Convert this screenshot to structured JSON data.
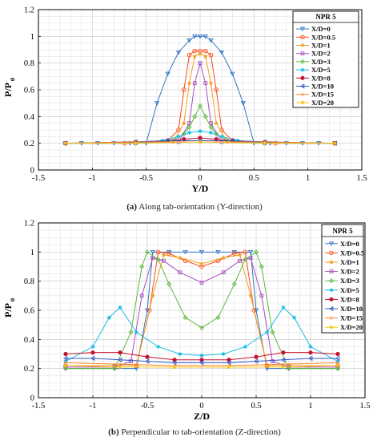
{
  "colors": {
    "X/D=0": "#2f75c8",
    "X/D=0.5": "#ff4a1a",
    "X/D=1": "#f0a020",
    "X/D=2": "#a64fc0",
    "X/D=3": "#5cb83a",
    "X/D=5": "#19bce8",
    "X/D=8": "#c8102e",
    "X/D=10": "#3058c8",
    "X/D=15": "#ff7f24",
    "X/D=20": "#f5c518"
  },
  "markers": {
    "X/D=0": "tri-down",
    "X/D=0.5": "circle",
    "X/D=1": "star",
    "X/D=2": "square",
    "X/D=3": "diamond",
    "X/D=5": "hexagram",
    "X/D=8": "dot",
    "X/D=10": "tri-left",
    "X/D=15": "plus",
    "X/D=20": "asterisk"
  },
  "chart_data": [
    {
      "type": "line",
      "caption_label": "(a)",
      "caption_text": "Along tab-orientation (Y-direction)",
      "xlabel": "Y/D",
      "ylabel": "P/P",
      "ylabel_sub": "o",
      "xlim": [
        -1.5,
        1.5
      ],
      "ylim": [
        0,
        1.2
      ],
      "xticks": [
        "-1.5",
        "-1",
        "-0.5",
        "0",
        "0.5",
        "1",
        "1.5"
      ],
      "yticks": [
        "0",
        "0.2",
        "0.4",
        "0.6",
        "0.8",
        "1",
        "1.2"
      ],
      "grid": true,
      "legend_title": "NPR 5",
      "legend_position": "top-right",
      "series": [
        {
          "name": "X/D=0",
          "x": [
            -1.25,
            -1.1,
            -0.95,
            -0.8,
            -0.65,
            -0.5,
            -0.4,
            -0.3,
            -0.2,
            -0.1,
            -0.05,
            0,
            0.05,
            0.1,
            0.2,
            0.3,
            0.4,
            0.5,
            0.65,
            0.8,
            0.95,
            1.1,
            1.25
          ],
          "y": [
            0.2,
            0.2,
            0.2,
            0.2,
            0.2,
            0.2,
            0.5,
            0.72,
            0.88,
            0.97,
            1.0,
            1.0,
            1.0,
            0.97,
            0.88,
            0.72,
            0.5,
            0.2,
            0.2,
            0.2,
            0.2,
            0.2,
            0.2
          ]
        },
        {
          "name": "X/D=0.5",
          "x": [
            -1.25,
            -0.7,
            -0.3,
            -0.2,
            -0.15,
            -0.1,
            -0.05,
            0,
            0.05,
            0.1,
            0.15,
            0.2,
            0.3,
            0.7,
            1.25
          ],
          "y": [
            0.2,
            0.2,
            0.22,
            0.3,
            0.6,
            0.86,
            0.89,
            0.89,
            0.89,
            0.86,
            0.6,
            0.3,
            0.22,
            0.2,
            0.2
          ]
        },
        {
          "name": "X/D=1",
          "x": [
            -1.25,
            -0.6,
            -0.25,
            -0.15,
            -0.1,
            -0.05,
            0,
            0.05,
            0.1,
            0.15,
            0.25,
            0.6,
            1.25
          ],
          "y": [
            0.2,
            0.2,
            0.21,
            0.35,
            0.65,
            0.85,
            0.87,
            0.85,
            0.65,
            0.35,
            0.21,
            0.2,
            0.2
          ]
        },
        {
          "name": "X/D=2",
          "x": [
            -1.25,
            -0.6,
            -0.2,
            -0.1,
            -0.05,
            0,
            0.05,
            0.1,
            0.2,
            0.6,
            1.25
          ],
          "y": [
            0.2,
            0.2,
            0.21,
            0.35,
            0.65,
            0.8,
            0.65,
            0.35,
            0.21,
            0.2,
            0.2
          ]
        },
        {
          "name": "X/D=3",
          "x": [
            -1.25,
            -0.6,
            -0.25,
            -0.15,
            -0.1,
            -0.05,
            0,
            0.05,
            0.1,
            0.15,
            0.25,
            0.6,
            1.25
          ],
          "y": [
            0.2,
            0.2,
            0.22,
            0.27,
            0.32,
            0.4,
            0.48,
            0.4,
            0.32,
            0.27,
            0.22,
            0.2,
            0.2
          ]
        },
        {
          "name": "X/D=5",
          "x": [
            -1.25,
            -0.6,
            -0.35,
            -0.2,
            -0.1,
            0,
            0.1,
            0.2,
            0.35,
            0.6,
            1.25
          ],
          "y": [
            0.2,
            0.2,
            0.22,
            0.25,
            0.28,
            0.29,
            0.28,
            0.25,
            0.22,
            0.2,
            0.2
          ]
        },
        {
          "name": "X/D=8",
          "x": [
            -1.25,
            -0.6,
            -0.3,
            -0.15,
            0,
            0.15,
            0.3,
            0.6,
            1.25
          ],
          "y": [
            0.2,
            0.21,
            0.22,
            0.23,
            0.24,
            0.23,
            0.22,
            0.21,
            0.2
          ]
        },
        {
          "name": "X/D=10",
          "x": [
            -1.25,
            -0.6,
            -0.3,
            0,
            0.3,
            0.6,
            1.25
          ],
          "y": [
            0.2,
            0.21,
            0.22,
            0.22,
            0.22,
            0.21,
            0.2
          ]
        },
        {
          "name": "X/D=15",
          "x": [
            -1.25,
            -0.6,
            0,
            0.6,
            1.25
          ],
          "y": [
            0.2,
            0.21,
            0.21,
            0.21,
            0.2
          ]
        },
        {
          "name": "X/D=20",
          "x": [
            -1.25,
            -0.6,
            0,
            0.6,
            1.25
          ],
          "y": [
            0.2,
            0.2,
            0.21,
            0.2,
            0.2
          ]
        }
      ]
    },
    {
      "type": "line",
      "caption_label": "(b)",
      "caption_text": "Perpendicular to tab-orientation (Z-direction)",
      "xlabel": "Z/D",
      "ylabel": "P/P",
      "ylabel_sub": "o",
      "xlim": [
        -1.5,
        1.5
      ],
      "ylim": [
        0,
        1.2
      ],
      "xticks": [
        "-1.5",
        "-1",
        "-0.5",
        "0",
        "0.5",
        "1",
        "1.5"
      ],
      "yticks": [
        "0",
        "0.2",
        "0.4",
        "0.6",
        "0.8",
        "1",
        "1.2"
      ],
      "grid": true,
      "legend_title": "NPR 5",
      "legend_position": "top-right",
      "series": [
        {
          "name": "X/D=0",
          "x": [
            -1.25,
            -0.8,
            -0.6,
            -0.5,
            -0.45,
            -0.3,
            -0.15,
            0,
            0.15,
            0.3,
            0.45,
            0.5,
            0.6,
            0.8,
            1.25
          ],
          "y": [
            0.2,
            0.2,
            0.2,
            0.6,
            1.0,
            1.0,
            1.0,
            1.0,
            1.0,
            1.0,
            1.0,
            0.6,
            0.2,
            0.2,
            0.2
          ]
        },
        {
          "name": "X/D=0.5",
          "x": [
            -1.25,
            -0.8,
            -0.6,
            -0.48,
            -0.4,
            -0.3,
            -0.15,
            0,
            0.15,
            0.3,
            0.4,
            0.48,
            0.6,
            0.8,
            1.25
          ],
          "y": [
            0.22,
            0.22,
            0.22,
            0.6,
            1.0,
            0.99,
            0.94,
            0.9,
            0.94,
            0.99,
            1.0,
            0.6,
            0.22,
            0.22,
            0.22
          ]
        },
        {
          "name": "X/D=1",
          "x": [
            -1.25,
            -0.8,
            -0.6,
            -0.45,
            -0.35,
            -0.2,
            0,
            0.2,
            0.35,
            0.45,
            0.6,
            0.8,
            1.25
          ],
          "y": [
            0.22,
            0.22,
            0.22,
            0.7,
            0.98,
            0.96,
            0.92,
            0.96,
            0.98,
            0.7,
            0.22,
            0.22,
            0.22
          ]
        },
        {
          "name": "X/D=2",
          "x": [
            -1.25,
            -0.8,
            -0.65,
            -0.55,
            -0.45,
            -0.35,
            -0.2,
            0,
            0.2,
            0.35,
            0.45,
            0.55,
            0.65,
            0.8,
            1.25
          ],
          "y": [
            0.21,
            0.21,
            0.25,
            0.7,
            0.96,
            0.94,
            0.86,
            0.79,
            0.86,
            0.94,
            0.96,
            0.7,
            0.25,
            0.21,
            0.21
          ]
        },
        {
          "name": "X/D=3",
          "x": [
            -1.25,
            -0.8,
            -0.65,
            -0.55,
            -0.5,
            -0.4,
            -0.3,
            -0.15,
            0,
            0.15,
            0.3,
            0.4,
            0.5,
            0.55,
            0.65,
            0.8,
            1.25
          ],
          "y": [
            0.2,
            0.2,
            0.45,
            0.9,
            1.0,
            0.95,
            0.78,
            0.55,
            0.48,
            0.55,
            0.78,
            0.95,
            1.0,
            0.9,
            0.45,
            0.2,
            0.2
          ]
        },
        {
          "name": "X/D=5",
          "x": [
            -1.25,
            -1.0,
            -0.85,
            -0.75,
            -0.6,
            -0.4,
            -0.2,
            0,
            0.2,
            0.4,
            0.6,
            0.75,
            0.85,
            1.0,
            1.25
          ],
          "y": [
            0.25,
            0.35,
            0.55,
            0.62,
            0.45,
            0.35,
            0.3,
            0.29,
            0.3,
            0.35,
            0.45,
            0.62,
            0.55,
            0.35,
            0.25
          ]
        },
        {
          "name": "X/D=8",
          "x": [
            -1.25,
            -1.0,
            -0.75,
            -0.5,
            -0.25,
            0,
            0.25,
            0.5,
            0.75,
            1.0,
            1.25
          ],
          "y": [
            0.3,
            0.31,
            0.31,
            0.28,
            0.26,
            0.26,
            0.26,
            0.28,
            0.31,
            0.31,
            0.3
          ]
        },
        {
          "name": "X/D=10",
          "x": [
            -1.25,
            -1.0,
            -0.75,
            -0.5,
            -0.25,
            0,
            0.25,
            0.5,
            0.75,
            1.0,
            1.25
          ],
          "y": [
            0.27,
            0.27,
            0.26,
            0.25,
            0.24,
            0.24,
            0.24,
            0.25,
            0.26,
            0.27,
            0.27
          ]
        },
        {
          "name": "X/D=15",
          "x": [
            -1.25,
            -0.75,
            -0.25,
            0.25,
            0.75,
            1.25
          ],
          "y": [
            0.24,
            0.23,
            0.22,
            0.22,
            0.23,
            0.24
          ]
        },
        {
          "name": "X/D=20",
          "x": [
            -1.25,
            -0.75,
            -0.25,
            0.25,
            0.75,
            1.25
          ],
          "y": [
            0.22,
            0.21,
            0.21,
            0.21,
            0.21,
            0.22
          ]
        }
      ]
    }
  ]
}
